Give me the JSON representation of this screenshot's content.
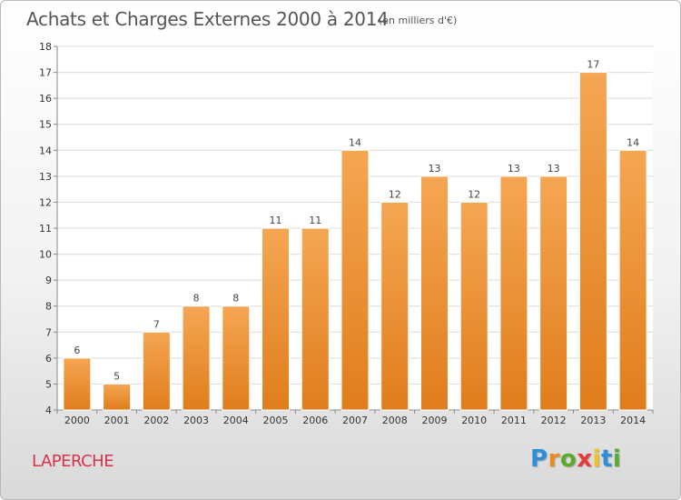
{
  "title": "Achats et Charges Externes 2000 à 2014",
  "subtitle": "(en milliers d'€)",
  "commune": "LAPERCHE",
  "logo": {
    "letters": [
      "P",
      "r",
      "o",
      "x",
      "i",
      "t",
      "i"
    ],
    "colors": [
      "#2e8fd8",
      "#f08a1c",
      "#5aaa2e",
      "#e83a3a",
      "#f0c419",
      "#2e8fd8",
      "#5aaa2e"
    ]
  },
  "colors": {
    "bar_top": "#f5a653",
    "bar_bottom": "#e07d1c",
    "grid": "#dcdcdc"
  },
  "chart_data": {
    "type": "bar",
    "categories": [
      "2000",
      "2001",
      "2002",
      "2003",
      "2004",
      "2005",
      "2006",
      "2007",
      "2008",
      "2009",
      "2010",
      "2011",
      "2012",
      "2013",
      "2014"
    ],
    "values": [
      6,
      5,
      7,
      8,
      8,
      11,
      11,
      14,
      12,
      13,
      12,
      13,
      13,
      17,
      14
    ],
    "ylim": [
      4,
      18
    ],
    "yticks": [
      4,
      5,
      6,
      7,
      8,
      9,
      10,
      11,
      12,
      13,
      14,
      15,
      16,
      17,
      18
    ],
    "grid": true,
    "xlabel": "",
    "ylabel": ""
  }
}
